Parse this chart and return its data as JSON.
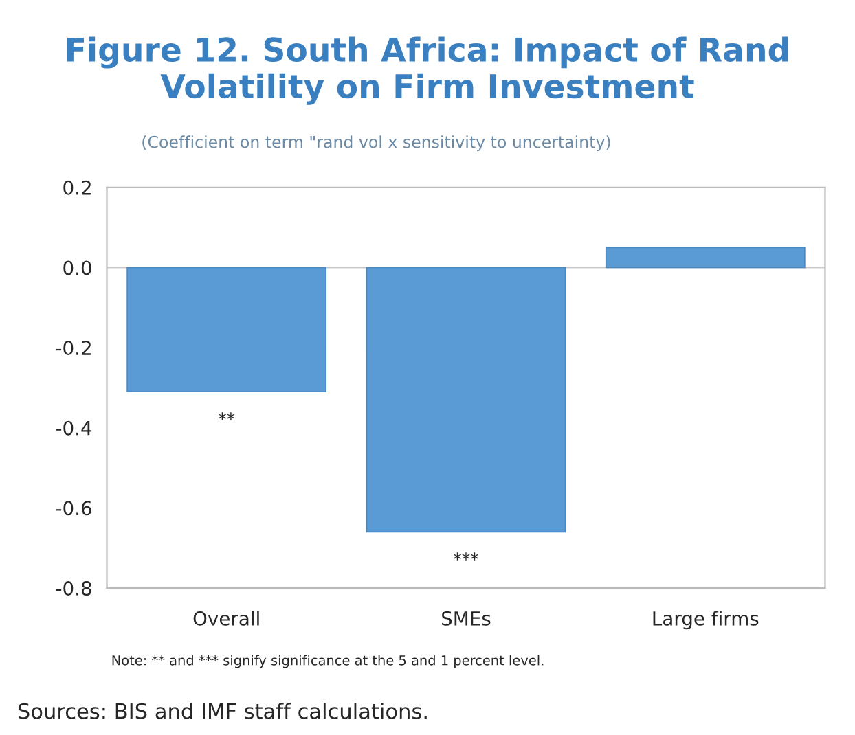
{
  "chart_data": {
    "type": "bar",
    "title": "Figure 12. South Africa: Impact of Rand Volatility on Firm Investment",
    "subtitle": "(Coefficient on term \"rand vol x sensitivity to uncertainty)",
    "categories": [
      "Overall",
      "SMEs",
      "Large firms"
    ],
    "values": [
      -0.31,
      -0.66,
      0.05
    ],
    "color": "#5b9bd5",
    "ylim": [
      -0.8,
      0.2
    ],
    "yticks": [
      {
        "value": -0.8,
        "label": "-0.8"
      },
      {
        "value": -0.6,
        "label": "-0.6"
      },
      {
        "value": -0.4,
        "label": "-0.4"
      },
      {
        "value": -0.2,
        "label": "-0.2"
      },
      {
        "value": 0.0,
        "label": "0.0"
      },
      {
        "value": 0.2,
        "label": "0.2"
      }
    ],
    "grid": false,
    "legend": false,
    "ref_lines": [
      {
        "axis": "y",
        "value": 0,
        "color": "#cccccc"
      }
    ],
    "annotations": [
      {
        "text": "**",
        "x": "Overall",
        "y": -0.31
      },
      {
        "text": "***",
        "x": "SMEs",
        "y": -0.66
      },
      "Note: ** and *** signify significance at the 5 and 1 percent level.",
      "Sources: BIS and IMF staff calculations."
    ]
  }
}
